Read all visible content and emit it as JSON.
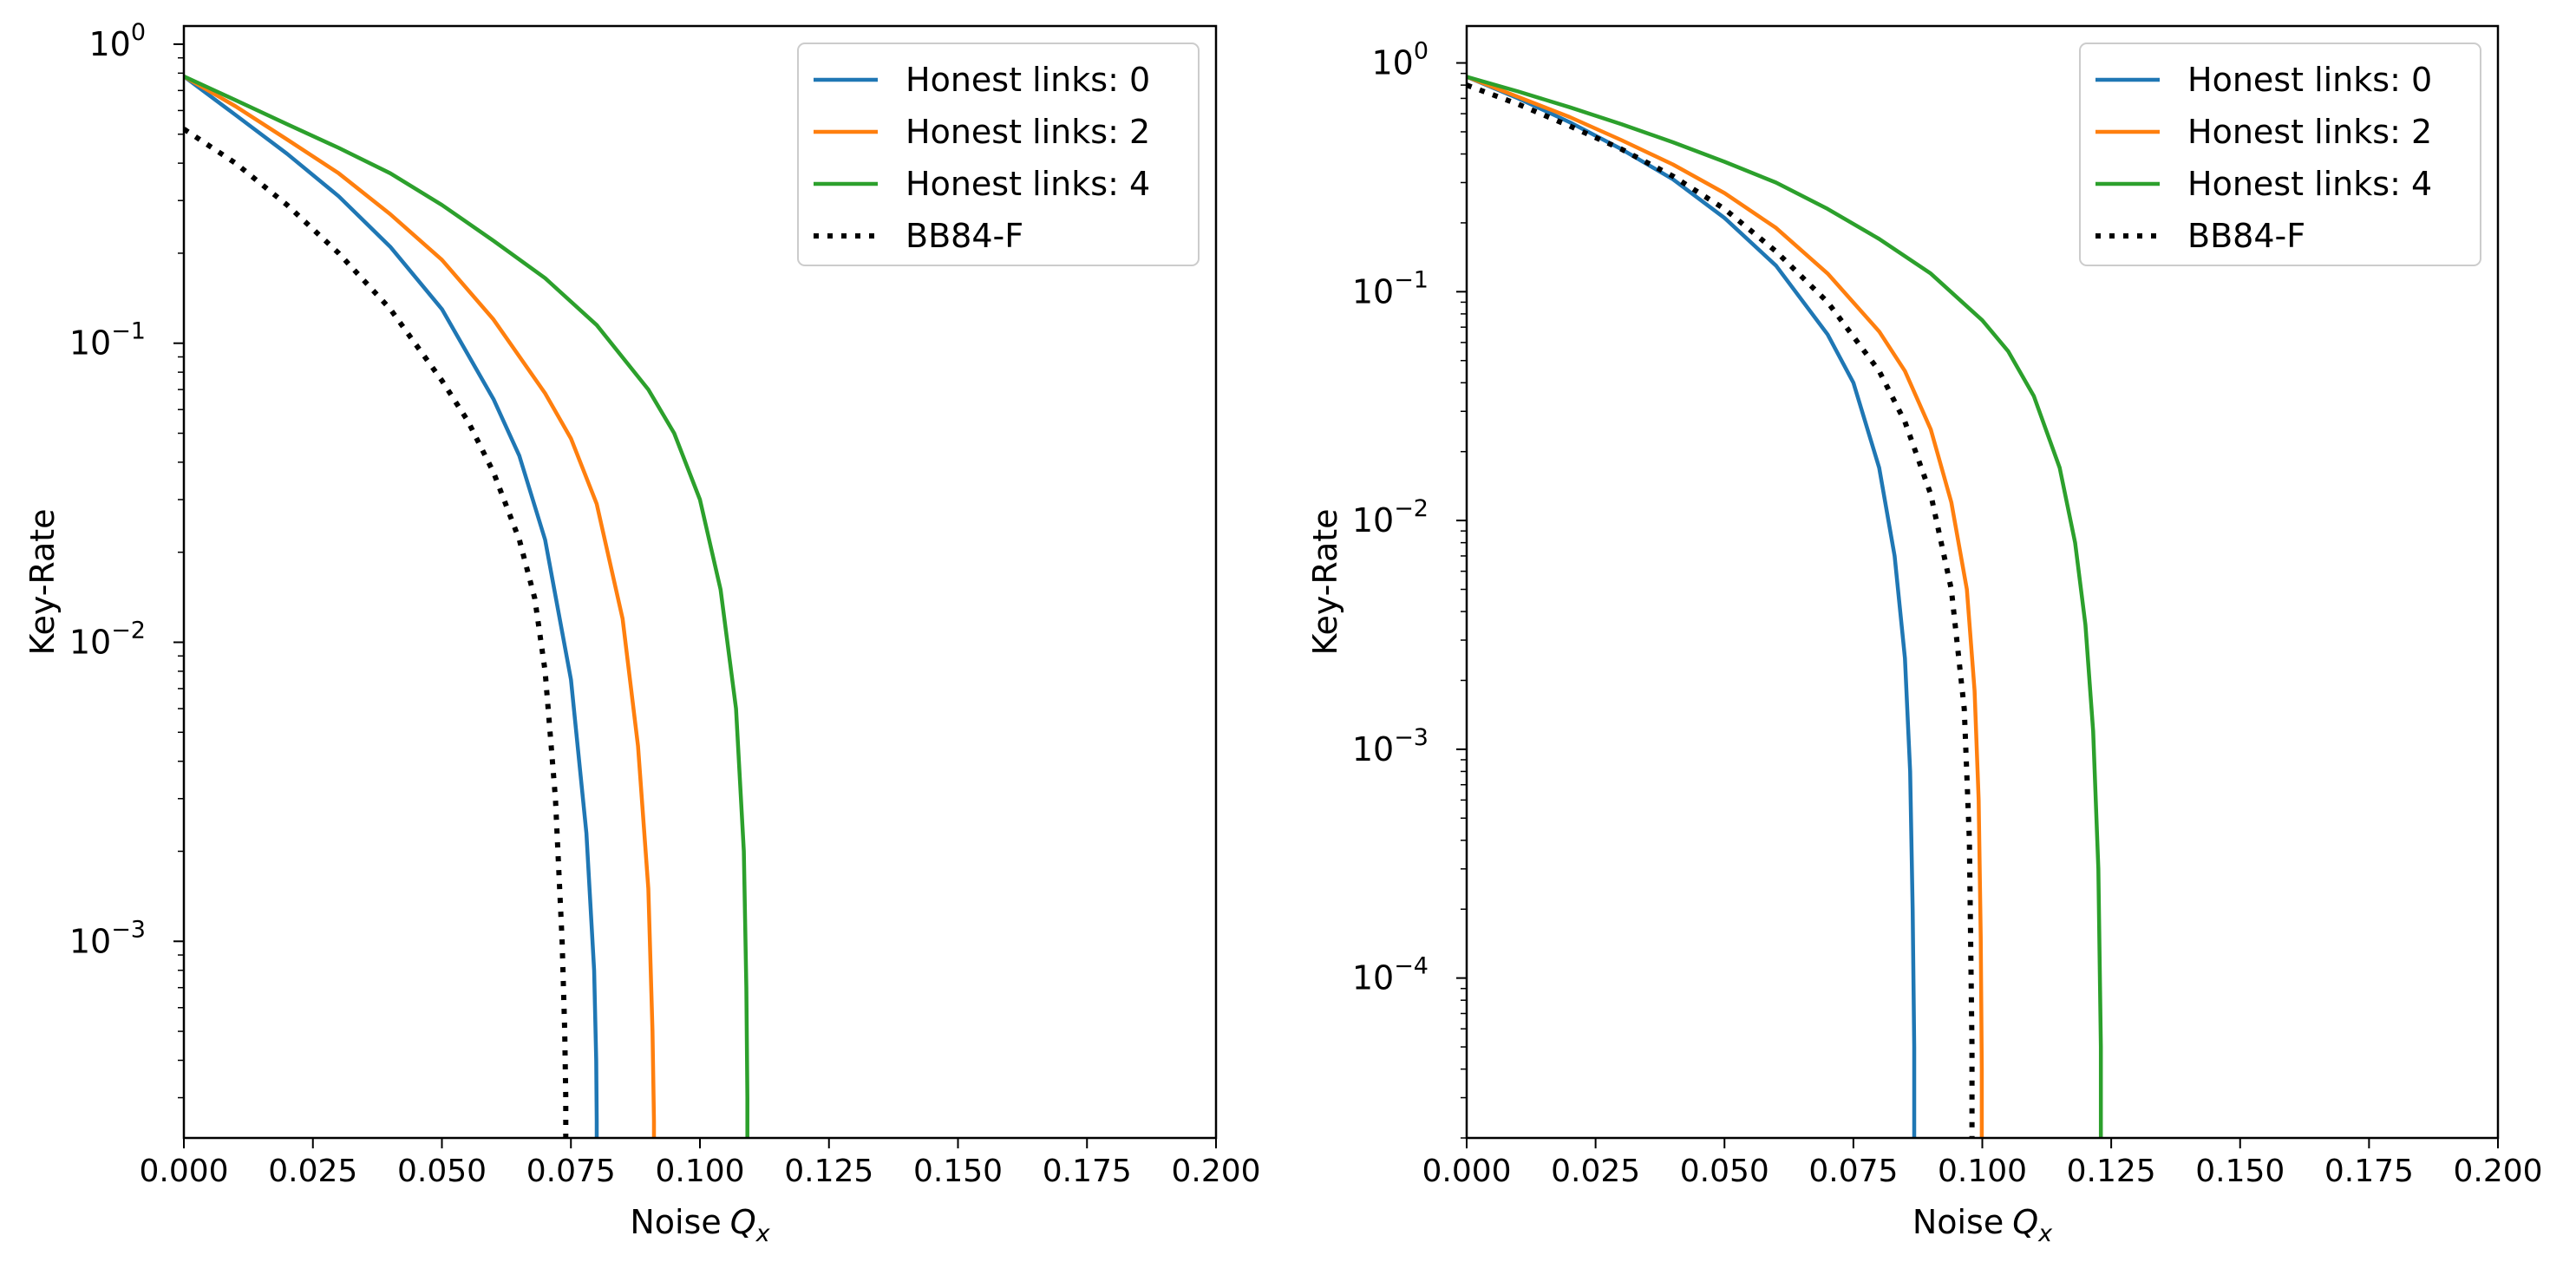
{
  "chart_data": [
    {
      "type": "line",
      "xlabel": "Noise",
      "xlabel_symbol": "Q",
      "xlabel_subscript": "x",
      "ylabel": "Key-Rate",
      "xscale": "linear",
      "yscale": "log",
      "xlim": [
        0.0,
        0.2
      ],
      "ylim": [
        0.00022,
        1.15
      ],
      "grid": false,
      "legend_position": "top-right",
      "x_ticks": [
        0.0,
        0.025,
        0.05,
        0.075,
        0.1,
        0.125,
        0.15,
        0.175,
        0.2
      ],
      "x_tick_labels": [
        "0.000",
        "0.025",
        "0.050",
        "0.075",
        "0.100",
        "0.125",
        "0.150",
        "0.175",
        "0.200"
      ],
      "y_ticks": [
        {
          "value": 1,
          "base": "10",
          "exp": "0"
        },
        {
          "value": 0.1,
          "base": "10",
          "exp": "−1"
        },
        {
          "value": 0.01,
          "base": "10",
          "exp": "−2"
        },
        {
          "value": 0.001,
          "base": "10",
          "exp": "−3"
        }
      ],
      "series": [
        {
          "name": "Honest links: 0",
          "color": "#1f77b4",
          "style": "solid",
          "x": [
            0.0,
            0.01,
            0.02,
            0.03,
            0.04,
            0.05,
            0.06,
            0.065,
            0.07,
            0.075,
            0.078,
            0.0795,
            0.0799,
            0.08,
            0.08
          ],
          "y": [
            0.78,
            0.58,
            0.43,
            0.31,
            0.21,
            0.13,
            0.065,
            0.042,
            0.022,
            0.0075,
            0.0023,
            0.0008,
            0.0004,
            0.00025,
            0.00022
          ]
        },
        {
          "name": "Honest links: 2",
          "color": "#ff7f0e",
          "style": "solid",
          "x": [
            0.0,
            0.01,
            0.02,
            0.03,
            0.04,
            0.05,
            0.06,
            0.07,
            0.075,
            0.08,
            0.085,
            0.088,
            0.09,
            0.0908,
            0.0911,
            0.0911
          ],
          "y": [
            0.78,
            0.62,
            0.48,
            0.37,
            0.27,
            0.19,
            0.12,
            0.068,
            0.048,
            0.029,
            0.012,
            0.0045,
            0.0015,
            0.0005,
            0.00025,
            0.00022
          ]
        },
        {
          "name": "Honest links: 4",
          "color": "#2ca02c",
          "style": "solid",
          "x": [
            0.0,
            0.01,
            0.02,
            0.03,
            0.04,
            0.05,
            0.06,
            0.07,
            0.08,
            0.09,
            0.095,
            0.1,
            0.104,
            0.107,
            0.1085,
            0.109,
            0.1092,
            0.1092
          ],
          "y": [
            0.78,
            0.65,
            0.54,
            0.45,
            0.37,
            0.29,
            0.22,
            0.165,
            0.115,
            0.07,
            0.05,
            0.03,
            0.015,
            0.006,
            0.002,
            0.0007,
            0.0003,
            0.00022
          ]
        },
        {
          "name": "BB84-F",
          "color": "#000000",
          "style": "dotted",
          "x": [
            0.0,
            0.01,
            0.02,
            0.03,
            0.04,
            0.05,
            0.055,
            0.06,
            0.065,
            0.068,
            0.07,
            0.072,
            0.0733,
            0.0738,
            0.074,
            0.074
          ],
          "y": [
            0.52,
            0.4,
            0.29,
            0.2,
            0.13,
            0.075,
            0.055,
            0.037,
            0.022,
            0.014,
            0.008,
            0.003,
            0.001,
            0.0005,
            0.0003,
            0.00022
          ]
        }
      ]
    },
    {
      "type": "line",
      "xlabel": "Noise",
      "xlabel_symbol": "Q",
      "xlabel_subscript": "x",
      "ylabel": "Key-Rate",
      "xscale": "linear",
      "yscale": "log",
      "xlim": [
        0.0,
        0.2
      ],
      "ylim": [
        2e-05,
        1.45
      ],
      "grid": false,
      "legend_position": "top-right",
      "x_ticks": [
        0.0,
        0.025,
        0.05,
        0.075,
        0.1,
        0.125,
        0.15,
        0.175,
        0.2
      ],
      "x_tick_labels": [
        "0.000",
        "0.025",
        "0.050",
        "0.075",
        "0.100",
        "0.125",
        "0.150",
        "0.175",
        "0.200"
      ],
      "y_ticks": [
        {
          "value": 1,
          "base": "10",
          "exp": "0"
        },
        {
          "value": 0.1,
          "base": "10",
          "exp": "−1"
        },
        {
          "value": 0.01,
          "base": "10",
          "exp": "−2"
        },
        {
          "value": 0.001,
          "base": "10",
          "exp": "−3"
        },
        {
          "value": 0.0001,
          "base": "10",
          "exp": "−4"
        }
      ],
      "series": [
        {
          "name": "Honest links: 0",
          "color": "#1f77b4",
          "style": "solid",
          "x": [
            0.0,
            0.01,
            0.02,
            0.03,
            0.04,
            0.05,
            0.06,
            0.07,
            0.075,
            0.08,
            0.083,
            0.085,
            0.086,
            0.0865,
            0.0868,
            0.0868
          ],
          "y": [
            0.87,
            0.7,
            0.55,
            0.42,
            0.31,
            0.21,
            0.13,
            0.065,
            0.04,
            0.017,
            0.007,
            0.0025,
            0.0008,
            0.0002,
            5e-05,
            2e-05
          ]
        },
        {
          "name": "Honest links: 2",
          "color": "#ff7f0e",
          "style": "solid",
          "x": [
            0.0,
            0.01,
            0.02,
            0.03,
            0.04,
            0.05,
            0.06,
            0.07,
            0.08,
            0.085,
            0.09,
            0.094,
            0.097,
            0.0985,
            0.0993,
            0.0997,
            0.0999,
            0.0999
          ],
          "y": [
            0.87,
            0.71,
            0.58,
            0.46,
            0.36,
            0.27,
            0.19,
            0.12,
            0.067,
            0.045,
            0.025,
            0.012,
            0.005,
            0.0018,
            0.0006,
            0.00015,
            4e-05,
            2e-05
          ]
        },
        {
          "name": "Honest links: 4",
          "color": "#2ca02c",
          "style": "solid",
          "x": [
            0.0,
            0.01,
            0.02,
            0.03,
            0.04,
            0.05,
            0.06,
            0.07,
            0.08,
            0.09,
            0.1,
            0.105,
            0.11,
            0.115,
            0.118,
            0.12,
            0.1215,
            0.1225,
            0.123,
            0.123
          ],
          "y": [
            0.87,
            0.75,
            0.64,
            0.54,
            0.45,
            0.37,
            0.3,
            0.23,
            0.17,
            0.12,
            0.075,
            0.055,
            0.035,
            0.017,
            0.008,
            0.0035,
            0.0012,
            0.0003,
            5e-05,
            2e-05
          ]
        },
        {
          "name": "BB84-F",
          "color": "#000000",
          "style": "dotted",
          "x": [
            0.0,
            0.01,
            0.02,
            0.03,
            0.04,
            0.05,
            0.06,
            0.07,
            0.08,
            0.085,
            0.09,
            0.094,
            0.0965,
            0.0975,
            0.098,
            0.098
          ],
          "y": [
            0.8,
            0.66,
            0.53,
            0.42,
            0.32,
            0.23,
            0.15,
            0.09,
            0.045,
            0.027,
            0.013,
            0.005,
            0.0015,
            0.0004,
            5e-05,
            2e-05
          ]
        }
      ]
    }
  ]
}
